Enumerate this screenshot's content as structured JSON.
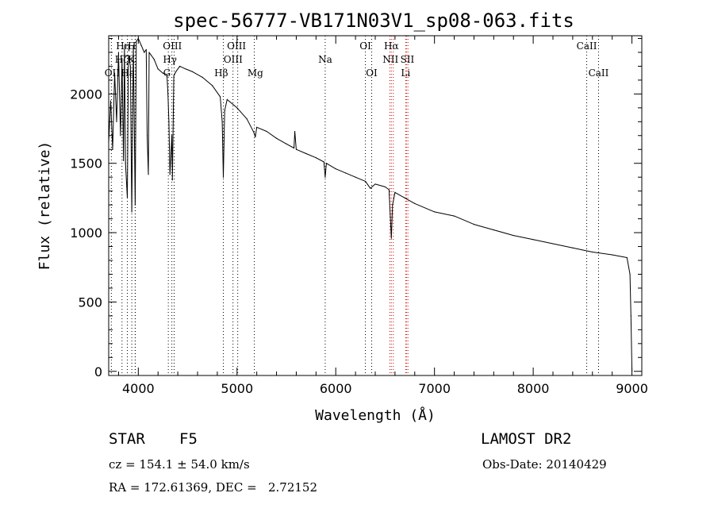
{
  "chart_data": {
    "type": "line",
    "title": "spec-56777-VB171N03V1_sp08-063.fits",
    "xlabel": "Wavelength (Å)",
    "ylabel": "Flux (relative)",
    "xlim": [
      3700,
      9100
    ],
    "ylim": [
      -30,
      2420
    ],
    "xticks": [
      4000,
      5000,
      6000,
      7000,
      8000,
      9000
    ],
    "yticks": [
      0,
      500,
      1000,
      1500,
      2000
    ],
    "grid": false,
    "series": [
      {
        "name": "spectrum",
        "x": [
          3700,
          3720,
          3740,
          3760,
          3780,
          3800,
          3820,
          3835,
          3850,
          3860,
          3870,
          3889,
          3900,
          3920,
          3934,
          3950,
          3968,
          3980,
          4000,
          4030,
          4060,
          4080,
          4090,
          4102,
          4110,
          4130,
          4160,
          4200,
          4250,
          4290,
          4300,
          4310,
          4320,
          4340,
          4345,
          4360,
          4380,
          4420,
          4480,
          4550,
          4650,
          4750,
          4830,
          4850,
          4861,
          4875,
          4900,
          5000,
          5100,
          5172,
          5185,
          5200,
          5300,
          5400,
          5500,
          5577,
          5585,
          5600,
          5700,
          5800,
          5880,
          5893,
          5905,
          6000,
          6100,
          6200,
          6300,
          6350,
          6400,
          6500,
          6540,
          6563,
          6575,
          6600,
          6700,
          6800,
          7000,
          7200,
          7400,
          7600,
          7800,
          8000,
          8200,
          8400,
          8600,
          8800,
          8950,
          8980,
          8990,
          9000
        ],
        "values": [
          1650,
          1950,
          1600,
          2150,
          1800,
          2300,
          1700,
          2250,
          1520,
          2350,
          1500,
          1250,
          2280,
          2200,
          1150,
          2350,
          1200,
          2380,
          2400,
          2350,
          2300,
          2320,
          1700,
          1420,
          2300,
          2280,
          2250,
          2180,
          2150,
          2140,
          2000,
          1800,
          1420,
          1700,
          1380,
          2130,
          2160,
          2200,
          2180,
          2160,
          2120,
          2060,
          1980,
          1800,
          1400,
          1880,
          1960,
          1900,
          1820,
          1720,
          1690,
          1760,
          1730,
          1680,
          1640,
          1610,
          1730,
          1600,
          1570,
          1540,
          1510,
          1400,
          1500,
          1460,
          1430,
          1400,
          1370,
          1320,
          1350,
          1330,
          1310,
          960,
          1200,
          1290,
          1250,
          1210,
          1150,
          1120,
          1060,
          1020,
          980,
          950,
          920,
          890,
          860,
          840,
          820,
          700,
          400,
          0
        ]
      }
    ],
    "lines": [
      {
        "name": "OII",
        "x": 3727,
        "color": "#000000"
      },
      {
        "name": "Hη",
        "x": 3835,
        "color": "#000000"
      },
      {
        "name": "Hζ",
        "x": 3889,
        "color": "#000000"
      },
      {
        "name": "Hε",
        "x": 3970,
        "color": "#000000"
      },
      {
        "name": "CaII K",
        "x": 3934,
        "color": "#000000"
      },
      {
        "name": "CaII H",
        "x": 3968,
        "color": "#000000"
      },
      {
        "name": "G",
        "x": 4304,
        "color": "#000000"
      },
      {
        "name": "Hγ",
        "x": 4340,
        "color": "#000000"
      },
      {
        "name": "OIII",
        "x": 4363,
        "color": "#000000"
      },
      {
        "name": "Hβ",
        "x": 4861,
        "color": "#000000"
      },
      {
        "name": "OIII",
        "x": 4959,
        "color": "#000000"
      },
      {
        "name": "OIII",
        "x": 5007,
        "color": "#000000"
      },
      {
        "name": "Mg",
        "x": 5175,
        "color": "#000000"
      },
      {
        "name": "Na",
        "x": 5893,
        "color": "#000000"
      },
      {
        "name": "OI",
        "x": 6300,
        "color": "#000000"
      },
      {
        "name": "OI",
        "x": 6364,
        "color": "#000000"
      },
      {
        "name": "NII",
        "x": 6548,
        "color": "#d00000"
      },
      {
        "name": "Hα",
        "x": 6563,
        "color": "#d00000"
      },
      {
        "name": "NII",
        "x": 6583,
        "color": "#d00000"
      },
      {
        "name": "SII",
        "x": 6716,
        "color": "#d00000"
      },
      {
        "name": "SII",
        "x": 6731,
        "color": "#d00000"
      },
      {
        "name": "Li",
        "x": 6708,
        "color": "#d00000"
      },
      {
        "name": "CaII",
        "x": 8542,
        "color": "#000000"
      },
      {
        "name": "CaII",
        "x": 8662,
        "color": "#000000"
      }
    ],
    "line_labels": [
      {
        "text": "Hη",
        "x": 3845,
        "row": 1
      },
      {
        "text": "H",
        "x": 3935,
        "row": 1
      },
      {
        "text": "Hζ",
        "x": 3830,
        "row": 2
      },
      {
        "text": "K",
        "x": 3930,
        "row": 2
      },
      {
        "text": "OII",
        "x": 3735,
        "row": 3
      },
      {
        "text": "Hε",
        "x": 3890,
        "row": 3
      },
      {
        "text": "OIII",
        "x": 4345,
        "row": 1
      },
      {
        "text": "Hγ",
        "x": 4320,
        "row": 2
      },
      {
        "text": "G",
        "x": 4290,
        "row": 3
      },
      {
        "text": "OIII",
        "x": 4995,
        "row": 1
      },
      {
        "text": "OIII",
        "x": 4960,
        "row": 2
      },
      {
        "text": "Hβ",
        "x": 4840,
        "row": 3
      },
      {
        "text": "Mg",
        "x": 5185,
        "row": 3
      },
      {
        "text": "Na",
        "x": 5893,
        "row": 2
      },
      {
        "text": "OI",
        "x": 6300,
        "row": 1
      },
      {
        "text": "OI",
        "x": 6364,
        "row": 3
      },
      {
        "text": "Hα",
        "x": 6563,
        "row": 1
      },
      {
        "text": "NII",
        "x": 6555,
        "row": 2
      },
      {
        "text": "SII",
        "x": 6725,
        "row": 2
      },
      {
        "text": "Li",
        "x": 6708,
        "row": 3
      },
      {
        "text": "CaII",
        "x": 8542,
        "row": 1
      },
      {
        "text": "CaII",
        "x": 8662,
        "row": 3
      }
    ]
  },
  "info": {
    "object_class": "STAR",
    "subclass": "F5",
    "survey": "LAMOST DR2",
    "redshift": "cz = 154.1 ± 54.0 km/s",
    "obs_date": "Obs-Date: 20140429",
    "coords": "RA = 172.61369, DEC =   2.72152"
  }
}
